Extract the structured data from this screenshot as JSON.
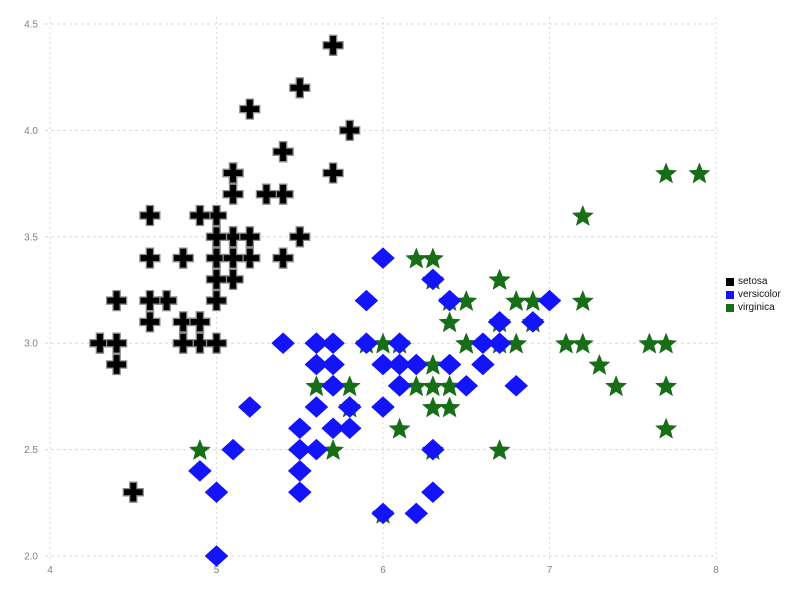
{
  "chart_data": {
    "type": "scatter",
    "title": "",
    "xlabel": "",
    "ylabel": "",
    "xlim": [
      4,
      8
    ],
    "ylim": [
      2.0,
      4.5
    ],
    "xticks": [
      4,
      5,
      6,
      7,
      8
    ],
    "xtick_labels": [
      "4",
      "5",
      "6",
      "7",
      "8"
    ],
    "yticks": [
      2.0,
      2.5,
      3.0,
      3.5,
      4.0,
      4.5
    ],
    "ytick_labels": [
      "2.0",
      "2.5",
      "3.0",
      "3.5",
      "4.0",
      "4.5"
    ],
    "grid": "dashed",
    "legend_position": "right",
    "series": [
      {
        "name": "setosa",
        "marker": "plus",
        "color": "#000000",
        "edge_color": "#8c8c8c",
        "points": [
          [
            5.1,
            3.5
          ],
          [
            4.9,
            3.0
          ],
          [
            4.7,
            3.2
          ],
          [
            4.6,
            3.1
          ],
          [
            5.0,
            3.6
          ],
          [
            5.4,
            3.9
          ],
          [
            4.6,
            3.4
          ],
          [
            5.0,
            3.4
          ],
          [
            4.4,
            2.9
          ],
          [
            4.9,
            3.1
          ],
          [
            5.4,
            3.7
          ],
          [
            4.8,
            3.4
          ],
          [
            4.8,
            3.0
          ],
          [
            4.3,
            3.0
          ],
          [
            5.8,
            4.0
          ],
          [
            5.7,
            4.4
          ],
          [
            5.4,
            3.9
          ],
          [
            5.1,
            3.5
          ],
          [
            5.7,
            3.8
          ],
          [
            5.1,
            3.8
          ],
          [
            5.4,
            3.4
          ],
          [
            5.1,
            3.7
          ],
          [
            4.6,
            3.6
          ],
          [
            5.1,
            3.3
          ],
          [
            4.8,
            3.4
          ],
          [
            5.0,
            3.0
          ],
          [
            5.0,
            3.4
          ],
          [
            5.2,
            3.5
          ],
          [
            5.2,
            3.4
          ],
          [
            4.7,
            3.2
          ],
          [
            4.8,
            3.1
          ],
          [
            5.4,
            3.4
          ],
          [
            5.2,
            4.1
          ],
          [
            5.5,
            4.2
          ],
          [
            4.9,
            3.1
          ],
          [
            5.0,
            3.2
          ],
          [
            5.5,
            3.5
          ],
          [
            4.9,
            3.6
          ],
          [
            4.4,
            3.0
          ],
          [
            5.1,
            3.4
          ],
          [
            5.0,
            3.5
          ],
          [
            4.5,
            2.3
          ],
          [
            4.4,
            3.2
          ],
          [
            5.0,
            3.5
          ],
          [
            5.1,
            3.8
          ],
          [
            4.8,
            3.0
          ],
          [
            5.1,
            3.8
          ],
          [
            4.6,
            3.2
          ],
          [
            5.3,
            3.7
          ],
          [
            5.0,
            3.3
          ]
        ]
      },
      {
        "name": "versicolor",
        "marker": "diamond",
        "color": "#1414fa",
        "edge_color": "#1414fa",
        "points": [
          [
            7.0,
            3.2
          ],
          [
            6.4,
            3.2
          ],
          [
            6.9,
            3.1
          ],
          [
            5.5,
            2.3
          ],
          [
            6.5,
            2.8
          ],
          [
            5.7,
            2.8
          ],
          [
            6.3,
            3.3
          ],
          [
            4.9,
            2.4
          ],
          [
            6.6,
            2.9
          ],
          [
            5.2,
            2.7
          ],
          [
            5.0,
            2.0
          ],
          [
            5.9,
            3.0
          ],
          [
            6.0,
            2.2
          ],
          [
            6.1,
            2.9
          ],
          [
            5.6,
            2.9
          ],
          [
            6.7,
            3.1
          ],
          [
            5.6,
            3.0
          ],
          [
            5.8,
            2.7
          ],
          [
            6.2,
            2.2
          ],
          [
            5.6,
            2.5
          ],
          [
            5.9,
            3.2
          ],
          [
            6.1,
            2.8
          ],
          [
            6.3,
            2.5
          ],
          [
            6.1,
            2.8
          ],
          [
            6.4,
            2.9
          ],
          [
            6.6,
            3.0
          ],
          [
            6.8,
            2.8
          ],
          [
            6.7,
            3.0
          ],
          [
            6.0,
            2.9
          ],
          [
            5.7,
            2.6
          ],
          [
            5.5,
            2.4
          ],
          [
            5.5,
            2.4
          ],
          [
            5.8,
            2.7
          ],
          [
            6.0,
            2.7
          ],
          [
            5.4,
            3.0
          ],
          [
            6.0,
            3.4
          ],
          [
            6.7,
            3.1
          ],
          [
            6.3,
            2.3
          ],
          [
            5.6,
            3.0
          ],
          [
            5.5,
            2.5
          ],
          [
            5.5,
            2.6
          ],
          [
            6.1,
            3.0
          ],
          [
            5.8,
            2.6
          ],
          [
            5.0,
            2.3
          ],
          [
            5.6,
            2.7
          ],
          [
            5.7,
            3.0
          ],
          [
            5.7,
            2.9
          ],
          [
            6.2,
            2.9
          ],
          [
            5.1,
            2.5
          ],
          [
            5.7,
            2.8
          ]
        ]
      },
      {
        "name": "virginica",
        "marker": "star",
        "color": "#176e17",
        "edge_color": "#176e17",
        "points": [
          [
            6.3,
            3.3
          ],
          [
            5.8,
            2.7
          ],
          [
            7.1,
            3.0
          ],
          [
            6.3,
            2.9
          ],
          [
            6.5,
            3.0
          ],
          [
            7.6,
            3.0
          ],
          [
            4.9,
            2.5
          ],
          [
            7.3,
            2.9
          ],
          [
            6.7,
            2.5
          ],
          [
            7.2,
            3.6
          ],
          [
            6.5,
            3.2
          ],
          [
            6.4,
            2.7
          ],
          [
            6.8,
            3.0
          ],
          [
            5.7,
            2.5
          ],
          [
            5.8,
            2.8
          ],
          [
            6.4,
            3.2
          ],
          [
            6.5,
            3.0
          ],
          [
            7.7,
            3.8
          ],
          [
            7.7,
            2.6
          ],
          [
            6.0,
            2.2
          ],
          [
            6.9,
            3.2
          ],
          [
            5.6,
            2.8
          ],
          [
            7.7,
            2.8
          ],
          [
            6.3,
            2.7
          ],
          [
            6.7,
            3.3
          ],
          [
            7.2,
            3.2
          ],
          [
            6.2,
            2.8
          ],
          [
            6.1,
            3.0
          ],
          [
            6.4,
            2.8
          ],
          [
            7.2,
            3.0
          ],
          [
            7.4,
            2.8
          ],
          [
            7.9,
            3.8
          ],
          [
            6.4,
            2.8
          ],
          [
            6.3,
            2.8
          ],
          [
            6.1,
            2.6
          ],
          [
            7.7,
            3.0
          ],
          [
            6.3,
            3.4
          ],
          [
            6.4,
            3.1
          ],
          [
            6.0,
            3.0
          ],
          [
            6.9,
            3.1
          ],
          [
            6.7,
            3.1
          ],
          [
            6.9,
            3.1
          ],
          [
            5.8,
            2.7
          ],
          [
            6.8,
            3.2
          ],
          [
            6.7,
            3.3
          ],
          [
            6.7,
            3.0
          ],
          [
            6.3,
            2.5
          ],
          [
            6.5,
            3.0
          ],
          [
            6.2,
            3.4
          ],
          [
            5.9,
            3.0
          ]
        ]
      }
    ]
  },
  "legend": {
    "items": [
      {
        "label": "setosa",
        "color": "#000000"
      },
      {
        "label": "versicolor",
        "color": "#1414fa"
      },
      {
        "label": "virginica",
        "color": "#176e17"
      }
    ]
  },
  "colors": {
    "background": "#ffffff",
    "grid": "#d8d8e4",
    "tick_label": "#828282"
  }
}
